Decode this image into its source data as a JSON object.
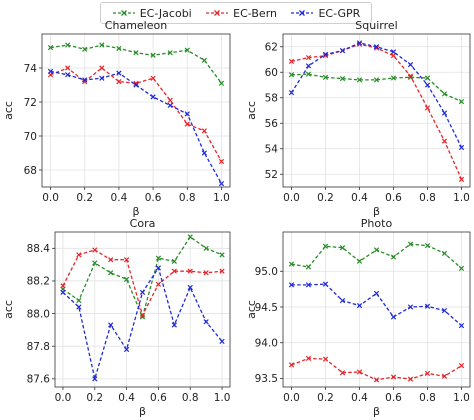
{
  "legend": [
    {
      "label": "EC-Jacobi",
      "color": "#2a8c2a"
    },
    {
      "label": "EC-Bern",
      "color": "#e8262b"
    },
    {
      "label": "EC-GPR",
      "color": "#1f2bd6"
    }
  ],
  "chart_data": [
    {
      "type": "line",
      "title": "Chameleon",
      "xlabel": "β",
      "ylabel": "acc",
      "x": [
        0.0,
        0.1,
        0.2,
        0.3,
        0.4,
        0.5,
        0.6,
        0.7,
        0.8,
        0.9,
        1.0
      ],
      "xticks": [
        "0.0",
        "0.2",
        "0.4",
        "0.6",
        "0.8",
        "1.0"
      ],
      "yticks": [
        "68",
        "70",
        "72",
        "74"
      ],
      "ylim": [
        67.0,
        76.0
      ],
      "ytick_values": [
        68,
        70,
        72,
        74
      ],
      "grid": true,
      "series": [
        {
          "name": "EC-Jacobi",
          "color": "#2a8c2a",
          "values": [
            75.2,
            75.35,
            75.1,
            75.35,
            75.15,
            74.9,
            74.75,
            74.9,
            75.05,
            74.45,
            73.1
          ]
        },
        {
          "name": "EC-Bern",
          "color": "#e8262b",
          "values": [
            73.6,
            74.0,
            73.2,
            74.0,
            73.2,
            73.1,
            73.4,
            72.1,
            70.7,
            70.3,
            68.5
          ]
        },
        {
          "name": "EC-GPR",
          "color": "#1f2bd6",
          "values": [
            73.8,
            73.6,
            73.3,
            73.4,
            73.7,
            73.0,
            72.3,
            71.8,
            71.3,
            69.0,
            67.2
          ]
        }
      ]
    },
    {
      "type": "line",
      "title": "Squirrel",
      "xlabel": "β",
      "ylabel": "acc",
      "x": [
        0.0,
        0.1,
        0.2,
        0.3,
        0.4,
        0.5,
        0.6,
        0.7,
        0.8,
        0.9,
        1.0
      ],
      "xticks": [
        "0.0",
        "0.2",
        "0.4",
        "0.6",
        "0.8",
        "1.0"
      ],
      "yticks": [
        "52",
        "54",
        "56",
        "58",
        "60",
        "62"
      ],
      "ylim": [
        51.0,
        63.0
      ],
      "ytick_values": [
        52,
        54,
        56,
        58,
        60,
        62
      ],
      "grid": true,
      "series": [
        {
          "name": "EC-Jacobi",
          "color": "#2a8c2a",
          "values": [
            59.8,
            59.85,
            59.6,
            59.5,
            59.4,
            59.4,
            59.55,
            59.6,
            59.55,
            58.3,
            57.7
          ]
        },
        {
          "name": "EC-Bern",
          "color": "#e8262b",
          "values": [
            60.85,
            61.15,
            61.3,
            61.7,
            62.2,
            61.9,
            61.3,
            59.7,
            57.2,
            54.6,
            51.6
          ]
        },
        {
          "name": "EC-GPR",
          "color": "#1f2bd6",
          "values": [
            58.4,
            60.5,
            61.4,
            61.7,
            62.3,
            62.0,
            61.6,
            60.6,
            59.0,
            56.8,
            54.1
          ]
        }
      ]
    },
    {
      "type": "line",
      "title": "Cora",
      "xlabel": "β",
      "ylabel": "acc",
      "x": [
        0.0,
        0.1,
        0.2,
        0.3,
        0.4,
        0.5,
        0.6,
        0.7,
        0.8,
        0.9,
        1.0
      ],
      "xticks": [
        "0.0",
        "0.2",
        "0.4",
        "0.6",
        "0.8",
        "1.0"
      ],
      "yticks": [
        "87.6",
        "87.8",
        "88.0",
        "88.2",
        "88.4"
      ],
      "ylim": [
        87.55,
        88.5
      ],
      "ytick_values": [
        87.6,
        87.8,
        88.0,
        88.2,
        88.4
      ],
      "grid": true,
      "series": [
        {
          "name": "EC-Jacobi",
          "color": "#2a8c2a",
          "values": [
            88.15,
            88.08,
            88.31,
            88.25,
            88.21,
            87.98,
            88.34,
            88.32,
            88.47,
            88.4,
            88.36
          ]
        },
        {
          "name": "EC-Bern",
          "color": "#e8262b",
          "values": [
            88.17,
            88.36,
            88.39,
            88.33,
            88.33,
            87.99,
            88.18,
            88.26,
            88.26,
            88.25,
            88.26
          ]
        },
        {
          "name": "EC-GPR",
          "color": "#1f2bd6",
          "values": [
            88.13,
            88.04,
            87.6,
            87.93,
            87.78,
            88.13,
            88.28,
            87.93,
            88.16,
            87.95,
            87.83
          ]
        }
      ]
    },
    {
      "type": "line",
      "title": "Photo",
      "xlabel": "β",
      "ylabel": "acc",
      "x": [
        0.0,
        0.1,
        0.2,
        0.3,
        0.4,
        0.5,
        0.6,
        0.7,
        0.8,
        0.9,
        1.0
      ],
      "xticks": [
        "0.0",
        "0.2",
        "0.4",
        "0.6",
        "0.8",
        "1.0"
      ],
      "yticks": [
        "93.5",
        "94.0",
        "94.5",
        "95.0"
      ],
      "ylim": [
        93.38,
        95.55
      ],
      "ytick_values": [
        93.5,
        94.0,
        94.5,
        95.0
      ],
      "grid": true,
      "series": [
        {
          "name": "EC-Jacobi",
          "color": "#2a8c2a",
          "values": [
            95.1,
            95.06,
            95.35,
            95.33,
            95.14,
            95.3,
            95.2,
            95.38,
            95.36,
            95.25,
            95.04
          ]
        },
        {
          "name": "EC-Bern",
          "color": "#e8262b",
          "values": [
            93.69,
            93.78,
            93.77,
            93.58,
            93.59,
            93.48,
            93.52,
            93.49,
            93.57,
            93.53,
            93.68
          ]
        },
        {
          "name": "EC-GPR",
          "color": "#1f2bd6",
          "values": [
            94.81,
            94.81,
            94.82,
            94.59,
            94.52,
            94.69,
            94.36,
            94.5,
            94.51,
            94.45,
            94.24
          ]
        }
      ]
    }
  ]
}
